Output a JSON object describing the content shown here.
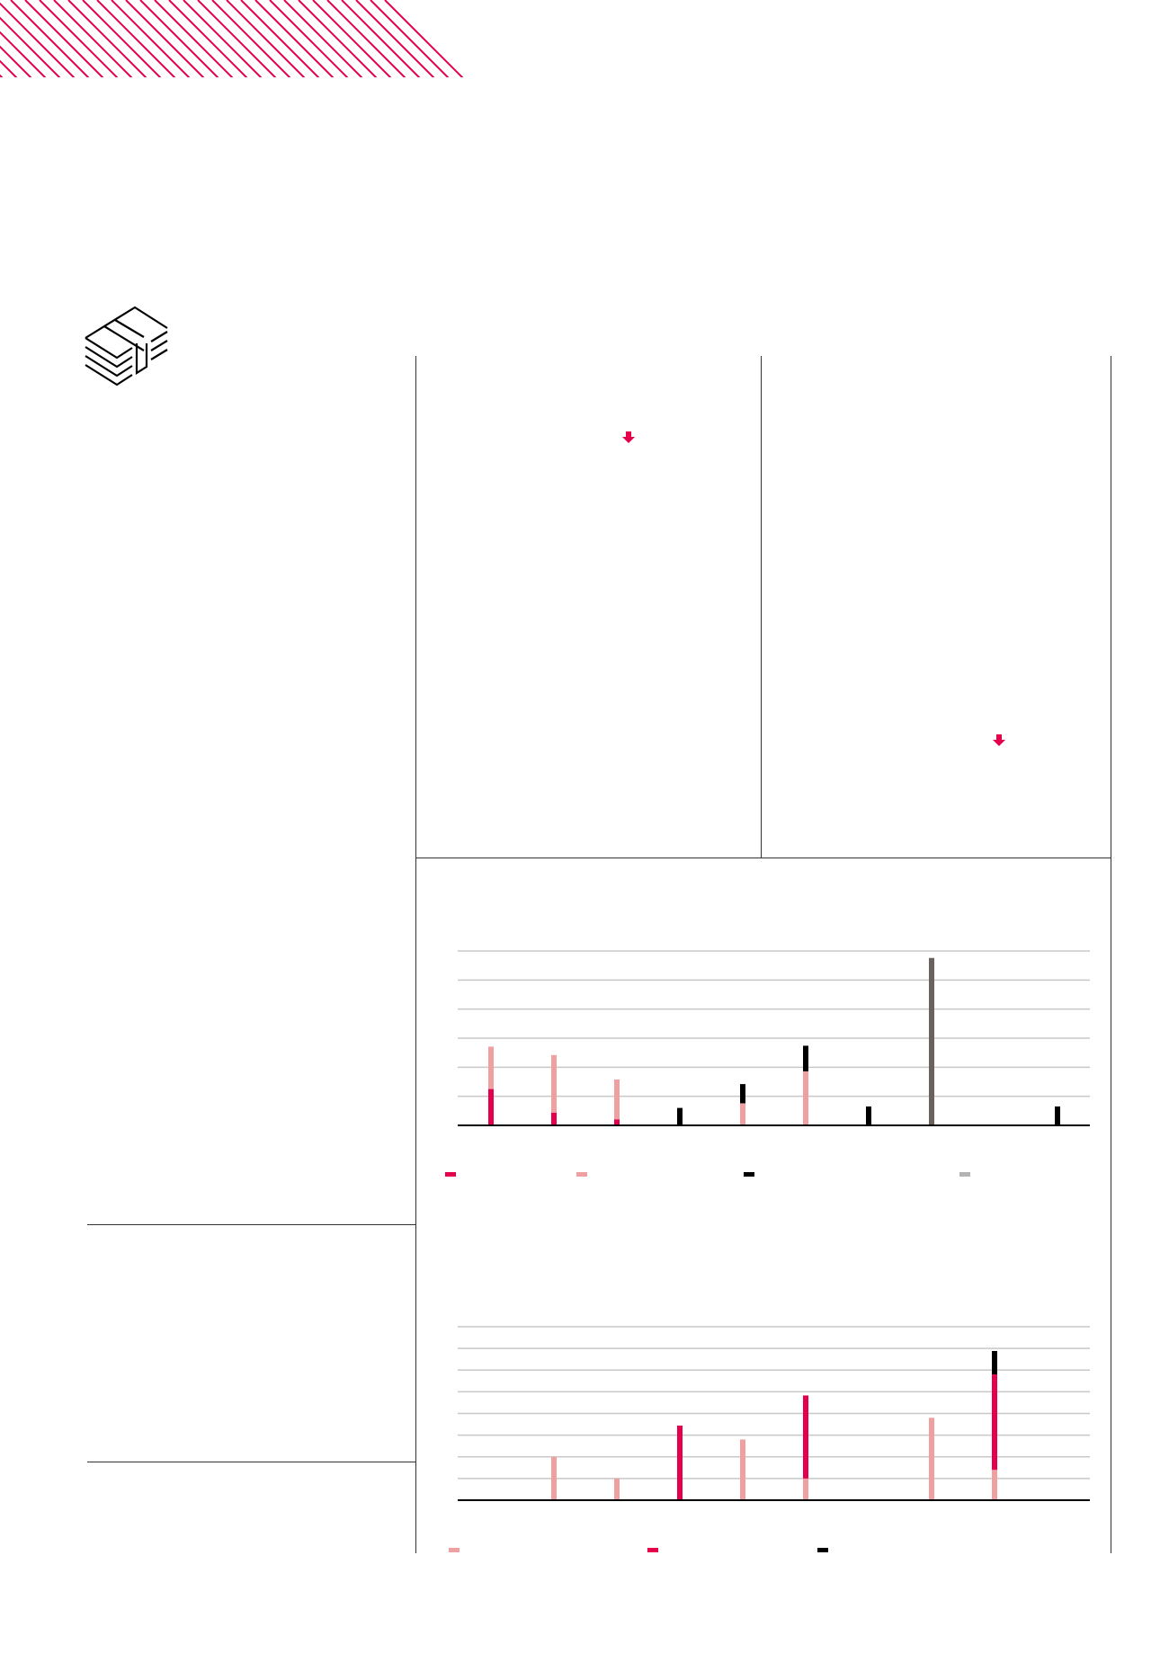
{
  "colors": {
    "accent": "#e4004b",
    "pink": "#f0a0a0",
    "black": "#000000",
    "dark_grey": "#6b625d",
    "light_grey": "#b3b3b3",
    "gridline": "#c8c8c8"
  },
  "icons": {
    "header": "diagonal-hatch-banner",
    "section": "money-stack-icon",
    "indicator": "arrow-down-icon"
  },
  "chart_data": [
    {
      "type": "bar",
      "stacked": true,
      "ylim": [
        0,
        6
      ],
      "grid": true,
      "legend_position": "bottom",
      "series": [
        {
          "color": "#e4004b",
          "values": [
            1.25,
            0.44,
            0.21,
            0,
            0,
            0,
            0,
            0,
            0,
            0
          ]
        },
        {
          "color": "#f0a0a0",
          "values": [
            1.46,
            1.98,
            1.37,
            0,
            0.76,
            1.86,
            0,
            0,
            0,
            0
          ]
        },
        {
          "color": "#000000",
          "values": [
            0,
            0,
            0,
            0.6,
            0.66,
            0.88,
            0.65,
            0,
            0,
            0.65
          ]
        },
        {
          "color": "#6b625d",
          "legend_color": "#b3b3b3",
          "values": [
            0,
            0,
            0,
            0,
            0,
            0,
            0,
            5.76,
            0,
            0
          ]
        }
      ]
    },
    {
      "type": "bar",
      "stacked": true,
      "ylim": [
        0,
        8
      ],
      "grid": true,
      "legend_position": "bottom",
      "series": [
        {
          "color": "#f0a0a0",
          "values": [
            0,
            2.0,
            1.0,
            0,
            2.8,
            1.0,
            0,
            3.8,
            1.4,
            0
          ]
        },
        {
          "color": "#e4004b",
          "values": [
            0,
            0,
            0,
            3.44,
            0,
            3.83,
            0,
            0,
            4.4,
            0
          ]
        },
        {
          "color": "#000000",
          "values": [
            0,
            0,
            0,
            0,
            0,
            0,
            0,
            0,
            1.08,
            0
          ]
        }
      ]
    }
  ]
}
